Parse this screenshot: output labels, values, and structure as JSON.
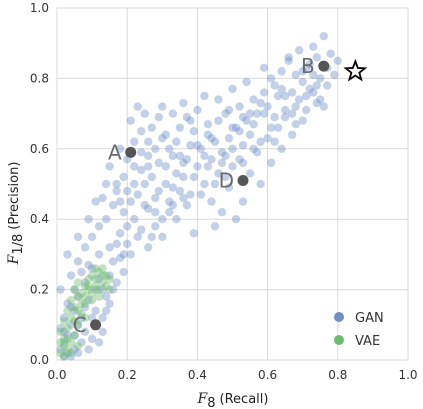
{
  "chart_data": {
    "type": "scatter",
    "xlabel_main": "F",
    "xlabel_sub": "8",
    "xlabel_unit": "(Recall)",
    "ylabel_main": "F",
    "ylabel_sub": "1/8",
    "ylabel_unit": "(Precision)",
    "xlim": [
      0.0,
      1.0
    ],
    "ylim": [
      0.0,
      1.0
    ],
    "x_ticks": [
      "0.0",
      "0.2",
      "0.4",
      "0.6",
      "0.8",
      "1.0"
    ],
    "y_ticks": [
      "0.0",
      "0.2",
      "0.4",
      "0.6",
      "0.8",
      "1.0"
    ],
    "grid": true,
    "legend_position": "bottom-right",
    "colors": {
      "GAN": "#6f8fc7",
      "VAE": "#6dbb6d",
      "annotation": "#555555",
      "star": "#000000",
      "grid": "#d9d9d9"
    },
    "series": [
      {
        "name": "GAN",
        "points": [
          [
            0.02,
            0.01
          ],
          [
            0.03,
            0.02
          ],
          [
            0.01,
            0.03
          ],
          [
            0.04,
            0.01
          ],
          [
            0.02,
            0.05
          ],
          [
            0.05,
            0.03
          ],
          [
            0.03,
            0.07
          ],
          [
            0.06,
            0.02
          ],
          [
            0.01,
            0.09
          ],
          [
            0.07,
            0.05
          ],
          [
            0.04,
            0.1
          ],
          [
            0.08,
            0.08
          ],
          [
            0.02,
            0.12
          ],
          [
            0.09,
            0.03
          ],
          [
            0.05,
            0.14
          ],
          [
            0.1,
            0.06
          ],
          [
            0.03,
            0.16
          ],
          [
            0.11,
            0.1
          ],
          [
            0.06,
            0.18
          ],
          [
            0.12,
            0.05
          ],
          [
            0.01,
            0.2
          ],
          [
            0.08,
            0.22
          ],
          [
            0.13,
            0.12
          ],
          [
            0.04,
            0.24
          ],
          [
            0.1,
            0.26
          ],
          [
            0.14,
            0.18
          ],
          [
            0.06,
            0.28
          ],
          [
            0.12,
            0.3
          ],
          [
            0.15,
            0.24
          ],
          [
            0.08,
            0.32
          ],
          [
            0.16,
            0.28
          ],
          [
            0.1,
            0.35
          ],
          [
            0.17,
            0.33
          ],
          [
            0.12,
            0.38
          ],
          [
            0.18,
            0.36
          ],
          [
            0.14,
            0.4
          ],
          [
            0.19,
            0.42
          ],
          [
            0.16,
            0.44
          ],
          [
            0.2,
            0.38
          ],
          [
            0.13,
            0.46
          ],
          [
            0.21,
            0.45
          ],
          [
            0.17,
            0.48
          ],
          [
            0.22,
            0.5
          ],
          [
            0.19,
            0.52
          ],
          [
            0.23,
            0.47
          ],
          [
            0.15,
            0.55
          ],
          [
            0.24,
            0.54
          ],
          [
            0.2,
            0.57
          ],
          [
            0.25,
            0.44
          ],
          [
            0.18,
            0.6
          ],
          [
            0.22,
            0.62
          ],
          [
            0.26,
            0.58
          ],
          [
            0.24,
            0.65
          ],
          [
            0.27,
            0.52
          ],
          [
            0.21,
            0.68
          ],
          [
            0.28,
            0.6
          ],
          [
            0.25,
            0.7
          ],
          [
            0.29,
            0.48
          ],
          [
            0.23,
            0.72
          ],
          [
            0.3,
            0.63
          ],
          [
            0.27,
            0.66
          ],
          [
            0.31,
            0.55
          ],
          [
            0.29,
            0.69
          ],
          [
            0.32,
            0.42
          ],
          [
            0.26,
            0.55
          ],
          [
            0.33,
            0.58
          ],
          [
            0.3,
            0.72
          ],
          [
            0.34,
            0.62
          ],
          [
            0.31,
            0.5
          ],
          [
            0.35,
            0.66
          ],
          [
            0.32,
            0.45
          ],
          [
            0.36,
            0.52
          ],
          [
            0.33,
            0.7
          ],
          [
            0.37,
            0.57
          ],
          [
            0.34,
            0.4
          ],
          [
            0.38,
            0.61
          ],
          [
            0.35,
            0.48
          ],
          [
            0.39,
            0.65
          ],
          [
            0.36,
            0.73
          ],
          [
            0.4,
            0.55
          ],
          [
            0.37,
            0.44
          ],
          [
            0.41,
            0.6
          ],
          [
            0.38,
            0.68
          ],
          [
            0.42,
            0.5
          ],
          [
            0.39,
            0.36
          ],
          [
            0.43,
            0.64
          ],
          [
            0.4,
            0.71
          ],
          [
            0.44,
            0.57
          ],
          [
            0.41,
            0.47
          ],
          [
            0.45,
            0.62
          ],
          [
            0.42,
            0.75
          ],
          [
            0.46,
            0.53
          ],
          [
            0.43,
            0.67
          ],
          [
            0.47,
            0.59
          ],
          [
            0.44,
            0.45
          ],
          [
            0.48,
            0.7
          ],
          [
            0.45,
            0.38
          ],
          [
            0.49,
            0.63
          ],
          [
            0.46,
            0.74
          ],
          [
            0.5,
            0.55
          ],
          [
            0.47,
            0.42
          ],
          [
            0.51,
            0.66
          ],
          [
            0.48,
            0.58
          ],
          [
            0.52,
            0.72
          ],
          [
            0.49,
            0.49
          ],
          [
            0.53,
            0.61
          ],
          [
            0.5,
            0.77
          ],
          [
            0.54,
            0.68
          ],
          [
            0.51,
            0.4
          ],
          [
            0.55,
            0.64
          ],
          [
            0.52,
            0.57
          ],
          [
            0.56,
            0.74
          ],
          [
            0.53,
            0.45
          ],
          [
            0.57,
            0.7
          ],
          [
            0.54,
            0.79
          ],
          [
            0.58,
            0.62
          ],
          [
            0.55,
            0.53
          ],
          [
            0.59,
            0.76
          ],
          [
            0.56,
            0.67
          ],
          [
            0.6,
            0.72
          ],
          [
            0.57,
            0.59
          ],
          [
            0.61,
            0.8
          ],
          [
            0.58,
            0.5
          ],
          [
            0.62,
            0.69
          ],
          [
            0.59,
            0.83
          ],
          [
            0.63,
            0.75
          ],
          [
            0.6,
            0.63
          ],
          [
            0.64,
            0.82
          ],
          [
            0.61,
            0.56
          ],
          [
            0.65,
            0.71
          ],
          [
            0.62,
            0.78
          ],
          [
            0.66,
            0.85
          ],
          [
            0.63,
            0.66
          ],
          [
            0.67,
            0.76
          ],
          [
            0.64,
            0.6
          ],
          [
            0.68,
            0.81
          ],
          [
            0.65,
            0.69
          ],
          [
            0.69,
            0.74
          ],
          [
            0.66,
            0.86
          ],
          [
            0.7,
            0.79
          ],
          [
            0.67,
            0.64
          ],
          [
            0.71,
            0.83
          ],
          [
            0.68,
            0.72
          ],
          [
            0.72,
            0.77
          ],
          [
            0.69,
            0.88
          ],
          [
            0.73,
            0.81
          ],
          [
            0.7,
            0.68
          ],
          [
            0.74,
            0.86
          ],
          [
            0.71,
            0.75
          ],
          [
            0.75,
            0.8
          ],
          [
            0.72,
            0.84
          ],
          [
            0.76,
            0.72
          ],
          [
            0.73,
            0.89
          ],
          [
            0.77,
            0.83
          ],
          [
            0.74,
            0.78
          ],
          [
            0.78,
            0.87
          ],
          [
            0.75,
            0.74
          ],
          [
            0.79,
            0.81
          ],
          [
            0.76,
            0.92
          ],
          [
            0.8,
            0.85
          ],
          [
            0.08,
            0.15
          ],
          [
            0.11,
            0.2
          ],
          [
            0.14,
            0.14
          ],
          [
            0.09,
            0.27
          ],
          [
            0.16,
            0.2
          ],
          [
            0.12,
            0.23
          ],
          [
            0.18,
            0.29
          ],
          [
            0.2,
            0.33
          ],
          [
            0.22,
            0.4
          ],
          [
            0.24,
            0.37
          ],
          [
            0.26,
            0.43
          ],
          [
            0.28,
            0.46
          ],
          [
            0.3,
            0.4
          ],
          [
            0.15,
            0.32
          ],
          [
            0.17,
            0.5
          ],
          [
            0.19,
            0.25
          ],
          [
            0.27,
            0.35
          ],
          [
            0.33,
            0.49
          ],
          [
            0.36,
            0.56
          ],
          [
            0.38,
            0.47
          ],
          [
            0.21,
            0.3
          ],
          [
            0.25,
            0.5
          ],
          [
            0.28,
            0.42
          ],
          [
            0.31,
            0.64
          ],
          [
            0.34,
            0.53
          ],
          [
            0.37,
            0.69
          ],
          [
            0.4,
            0.61
          ],
          [
            0.43,
            0.55
          ],
          [
            0.46,
            0.68
          ],
          [
            0.49,
            0.71
          ],
          [
            0.52,
            0.65
          ],
          [
            0.55,
            0.7
          ],
          [
            0.58,
            0.73
          ],
          [
            0.61,
            0.66
          ],
          [
            0.64,
            0.77
          ],
          [
            0.67,
            0.7
          ],
          [
            0.7,
            0.82
          ],
          [
            0.73,
            0.76
          ],
          [
            0.05,
            0.2
          ],
          [
            0.07,
            0.25
          ],
          [
            0.03,
            0.3
          ],
          [
            0.06,
            0.35
          ],
          [
            0.09,
            0.4
          ],
          [
            0.11,
            0.45
          ],
          [
            0.14,
            0.5
          ],
          [
            0.1,
            0.12
          ],
          [
            0.13,
            0.08
          ],
          [
            0.15,
            0.16
          ],
          [
            0.17,
            0.22
          ],
          [
            0.19,
            0.3
          ],
          [
            0.23,
            0.35
          ],
          [
            0.26,
            0.32
          ],
          [
            0.29,
            0.56
          ],
          [
            0.32,
            0.6
          ],
          [
            0.35,
            0.58
          ],
          [
            0.45,
            0.5
          ],
          [
            0.48,
            0.52
          ],
          [
            0.5,
            0.6
          ],
          [
            0.53,
            0.56
          ],
          [
            0.56,
            0.6
          ],
          [
            0.59,
            0.7
          ],
          [
            0.62,
            0.62
          ],
          [
            0.65,
            0.75
          ],
          [
            0.68,
            0.67
          ],
          [
            0.71,
            0.71
          ],
          [
            0.74,
            0.73
          ],
          [
            0.77,
            0.78
          ],
          [
            0.02,
            0.08
          ],
          [
            0.05,
            0.07
          ],
          [
            0.07,
            0.12
          ],
          [
            0.04,
            0.15
          ],
          [
            0.06,
            0.1
          ],
          [
            0.09,
            0.17
          ],
          [
            0.11,
            0.14
          ],
          [
            0.13,
            0.2
          ],
          [
            0.18,
            0.45
          ],
          [
            0.2,
            0.48
          ],
          [
            0.22,
            0.55
          ],
          [
            0.24,
            0.59
          ],
          [
            0.26,
            0.62
          ],
          [
            0.28,
            0.38
          ],
          [
            0.3,
            0.35
          ],
          [
            0.33,
            0.44
          ],
          [
            0.36,
            0.46
          ],
          [
            0.39,
            0.52
          ],
          [
            0.42,
            0.58
          ],
          [
            0.44,
            0.63
          ],
          [
            0.47,
            0.56
          ],
          [
            0.5,
            0.66
          ],
          [
            0.53,
            0.69
          ]
        ]
      },
      {
        "name": "VAE",
        "points": [
          [
            0.01,
            0.02
          ],
          [
            0.02,
            0.04
          ],
          [
            0.03,
            0.03
          ],
          [
            0.02,
            0.06
          ],
          [
            0.04,
            0.05
          ],
          [
            0.01,
            0.08
          ],
          [
            0.03,
            0.09
          ],
          [
            0.05,
            0.07
          ],
          [
            0.02,
            0.11
          ],
          [
            0.04,
            0.12
          ],
          [
            0.06,
            0.1
          ],
          [
            0.03,
            0.14
          ],
          [
            0.05,
            0.15
          ],
          [
            0.07,
            0.13
          ],
          [
            0.04,
            0.17
          ],
          [
            0.06,
            0.18
          ],
          [
            0.08,
            0.16
          ],
          [
            0.05,
            0.2
          ],
          [
            0.07,
            0.19
          ],
          [
            0.09,
            0.2
          ],
          [
            0.06,
            0.22
          ],
          [
            0.08,
            0.21
          ],
          [
            0.1,
            0.19
          ],
          [
            0.09,
            0.23
          ],
          [
            0.11,
            0.21
          ],
          [
            0.1,
            0.24
          ],
          [
            0.12,
            0.2
          ],
          [
            0.11,
            0.23
          ],
          [
            0.13,
            0.22
          ],
          [
            0.12,
            0.25
          ],
          [
            0.14,
            0.21
          ],
          [
            0.13,
            0.24
          ],
          [
            0.15,
            0.23
          ],
          [
            0.08,
            0.18
          ],
          [
            0.1,
            0.17
          ],
          [
            0.12,
            0.18
          ],
          [
            0.14,
            0.24
          ],
          [
            0.11,
            0.26
          ],
          [
            0.13,
            0.26
          ],
          [
            0.09,
            0.21
          ],
          [
            0.07,
            0.16
          ],
          [
            0.15,
            0.2
          ],
          [
            0.05,
            0.11
          ],
          [
            0.06,
            0.14
          ],
          [
            0.08,
            0.12
          ],
          [
            0.02,
            0.01
          ],
          [
            0.03,
            0.06
          ],
          [
            0.04,
            0.02
          ],
          [
            0.01,
            0.05
          ],
          [
            0.06,
            0.04
          ]
        ]
      }
    ],
    "highlights": [
      {
        "label": "A",
        "x": 0.21,
        "y": 0.59,
        "label_side": "left"
      },
      {
        "label": "B",
        "x": 0.76,
        "y": 0.835,
        "label_side": "left"
      },
      {
        "label": "C",
        "x": 0.11,
        "y": 0.1,
        "label_side": "left"
      },
      {
        "label": "D",
        "x": 0.53,
        "y": 0.51,
        "label_side": "left"
      }
    ],
    "star": {
      "x": 0.85,
      "y": 0.82
    },
    "legend": [
      "GAN",
      "VAE"
    ]
  }
}
